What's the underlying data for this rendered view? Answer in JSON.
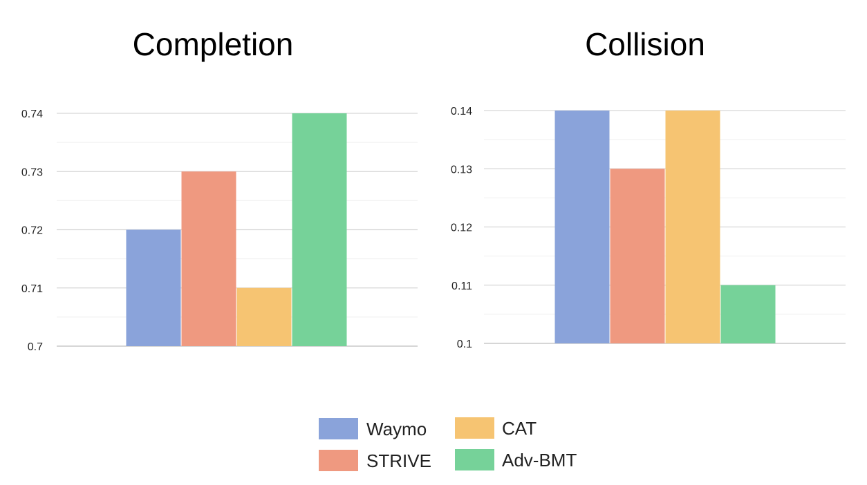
{
  "legend": [
    {
      "label": "Waymo",
      "color": "#8aa3da"
    },
    {
      "label": "STRIVE",
      "color": "#ef9980"
    },
    {
      "label": "CAT",
      "color": "#f6c472"
    },
    {
      "label": "Adv-BMT",
      "color": "#76d299"
    }
  ],
  "chart_data": [
    {
      "type": "bar",
      "title": "Completion",
      "categories": [
        "Waymo",
        "STRIVE",
        "CAT",
        "Adv-BMT"
      ],
      "values": [
        0.72,
        0.73,
        0.71,
        0.74
      ],
      "colors": [
        "#8aa3da",
        "#ef9980",
        "#f6c472",
        "#76d299"
      ],
      "ylim": [
        0.7,
        0.74
      ],
      "yticks": [
        0.7,
        0.71,
        0.72,
        0.73,
        0.74
      ],
      "ytick_labels": [
        "0.7",
        "0.71",
        "0.72",
        "0.73",
        "0.74"
      ],
      "grid": true,
      "xlabel": "",
      "ylabel": ""
    },
    {
      "type": "bar",
      "title": "Collision",
      "categories": [
        "Waymo",
        "STRIVE",
        "CAT",
        "Adv-BMT"
      ],
      "values": [
        0.14,
        0.13,
        0.14,
        0.11
      ],
      "colors": [
        "#8aa3da",
        "#ef9980",
        "#f6c472",
        "#76d299"
      ],
      "ylim": [
        0.1,
        0.14
      ],
      "yticks": [
        0.1,
        0.11,
        0.12,
        0.13,
        0.14
      ],
      "ytick_labels": [
        "0.1",
        "0.11",
        "0.12",
        "0.13",
        "0.14"
      ],
      "grid": true,
      "xlabel": "",
      "ylabel": ""
    }
  ]
}
